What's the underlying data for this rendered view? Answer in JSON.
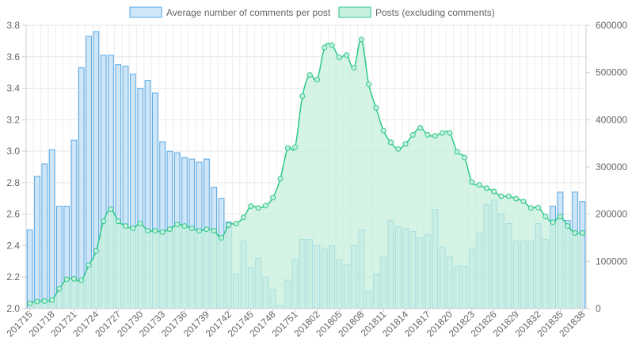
{
  "chart_data": {
    "type": "bar",
    "legend": {
      "position": "top"
    },
    "series": [
      {
        "name": "Average number of comments per post",
        "type": "bar",
        "axis": "left",
        "fill": "#cfe6f8",
        "stroke": "#55a8e6",
        "values": [
          2.5,
          2.84,
          2.92,
          3.01,
          2.65,
          2.65,
          3.07,
          3.53,
          3.73,
          3.76,
          3.61,
          3.61,
          3.55,
          3.54,
          3.49,
          3.4,
          3.45,
          3.37,
          3.06,
          3.0,
          2.99,
          2.96,
          2.95,
          2.93,
          2.95,
          2.77,
          2.7,
          2.55,
          2.22,
          2.43,
          2.26,
          2.32,
          2.2,
          2.12,
          2.02,
          2.18,
          2.31,
          2.44,
          2.44,
          2.4,
          2.38,
          2.4,
          2.31,
          2.28,
          2.4,
          2.5,
          2.11,
          2.22,
          2.33,
          2.56,
          2.52,
          2.51,
          2.49,
          2.45,
          2.47,
          2.63,
          2.39,
          2.33,
          2.27,
          2.27,
          2.38,
          2.48,
          2.66,
          2.69,
          2.6,
          2.54,
          2.43,
          2.43,
          2.43,
          2.54,
          2.44,
          2.65,
          2.74,
          2.56,
          2.74,
          2.68
        ]
      },
      {
        "name": "Posts (excluding comments)",
        "type": "area",
        "axis": "right",
        "fill": "#c7f0de",
        "stroke": "#2ec98a",
        "values": [
          11000,
          15000,
          16000,
          18000,
          42000,
          62000,
          63000,
          60000,
          92000,
          122000,
          185000,
          210000,
          185000,
          175000,
          170000,
          180000,
          165000,
          165000,
          162000,
          168000,
          178000,
          175000,
          170000,
          165000,
          168000,
          165000,
          150000,
          177000,
          180000,
          193000,
          217000,
          213000,
          218000,
          235000,
          275000,
          340000,
          342000,
          450000,
          495000,
          485000,
          553000,
          558000,
          532000,
          537000,
          510000,
          570000,
          475000,
          425000,
          377000,
          352000,
          338000,
          349000,
          368000,
          383000,
          368000,
          366000,
          372000,
          372000,
          332000,
          320000,
          268000,
          262000,
          255000,
          248000,
          238000,
          238000,
          233000,
          227000,
          213000,
          214000,
          195000,
          183000,
          195000,
          175000,
          160000,
          160000
        ]
      }
    ],
    "x_tick_labels": [
      "201715",
      "201718",
      "201721",
      "201724",
      "201727",
      "201730",
      "201733",
      "201736",
      "201739",
      "201742",
      "201745",
      "201748",
      "201751",
      "201802",
      "201805",
      "201808",
      "201811",
      "201814",
      "201817",
      "201820",
      "201823",
      "201826",
      "201829",
      "201832",
      "201835",
      "201838"
    ],
    "y_left": {
      "min": 2.0,
      "max": 3.8,
      "step": 0.2,
      "ticks": [
        "2.0",
        "2.2",
        "2.4",
        "2.6",
        "2.8",
        "3.0",
        "3.2",
        "3.4",
        "3.6",
        "3.8"
      ]
    },
    "y_right": {
      "min": 0,
      "max": 600000,
      "step": 100000,
      "ticks": [
        "0",
        "100000",
        "200000",
        "300000",
        "400000",
        "500000",
        "600000"
      ]
    },
    "grid": true
  }
}
